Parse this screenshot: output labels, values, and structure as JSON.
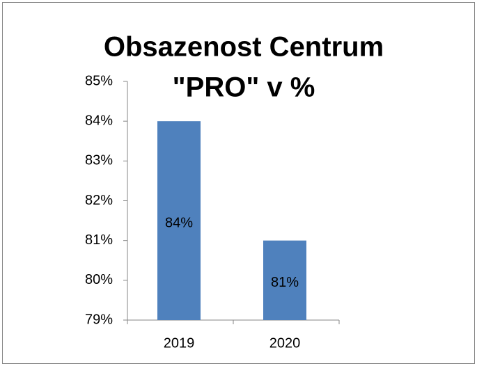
{
  "chart_data": {
    "type": "bar",
    "title": [
      "Obsazenost Centrum",
      "\"PRO\" v %"
    ],
    "categories": [
      "2019",
      "2020"
    ],
    "values": [
      84,
      81
    ],
    "value_labels": [
      "84%",
      "81%"
    ],
    "color": "#4f81bd",
    "ylim": [
      79,
      85
    ],
    "yticks": [
      {
        "value": 79,
        "label": "79%"
      },
      {
        "value": 80,
        "label": "80%"
      },
      {
        "value": 81,
        "label": "81%"
      },
      {
        "value": 82,
        "label": "82%"
      },
      {
        "value": 83,
        "label": "83%"
      },
      {
        "value": 84,
        "label": "84%"
      },
      {
        "value": 85,
        "label": "85%"
      }
    ],
    "grid": false
  }
}
